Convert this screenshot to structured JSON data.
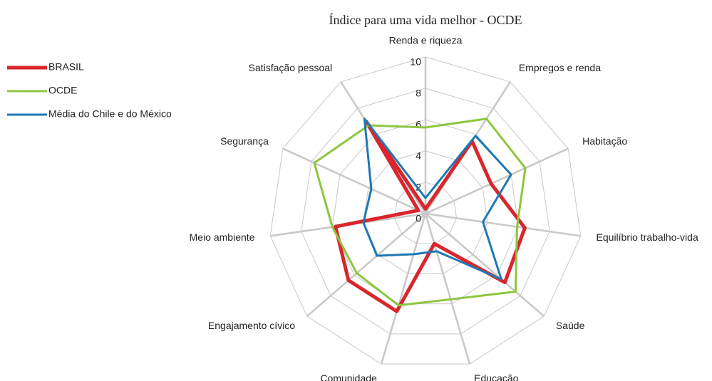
{
  "chart_data": {
    "type": "radar",
    "title": "Índice para uma vida melhor - OCDE",
    "categories": [
      "Renda e riqueza",
      "Empregos e renda",
      "Habitação",
      "Equilíbrio trabalho-vida",
      "Saúde",
      "Educação",
      "Comunidade",
      "Engajamento cívico",
      "Meio ambiente",
      "Segurança",
      "Satisfação pessoal"
    ],
    "series": [
      {
        "name": "BRASIL",
        "color": "#d9262c",
        "values": [
          0.3,
          5.5,
          4.6,
          6.4,
          6.7,
          2.0,
          6.5,
          6.5,
          5.8,
          0.5,
          7.0
        ]
      },
      {
        "name": "OCDE",
        "color": "#8dc63f",
        "values": [
          5.5,
          7.2,
          7.0,
          5.9,
          7.6,
          5.7,
          6.1,
          5.8,
          6.0,
          7.8,
          6.7
        ]
      },
      {
        "name": "Média do Chile e do México",
        "color": "#1f78b4",
        "values": [
          1.0,
          5.9,
          6.0,
          3.7,
          6.4,
          2.5,
          2.7,
          4.1,
          4.0,
          3.8,
          7.2
        ]
      }
    ],
    "ylim": [
      0,
      10
    ],
    "yticks": [
      0,
      2,
      4,
      6,
      8,
      10
    ],
    "grid": true,
    "legend": "left"
  }
}
